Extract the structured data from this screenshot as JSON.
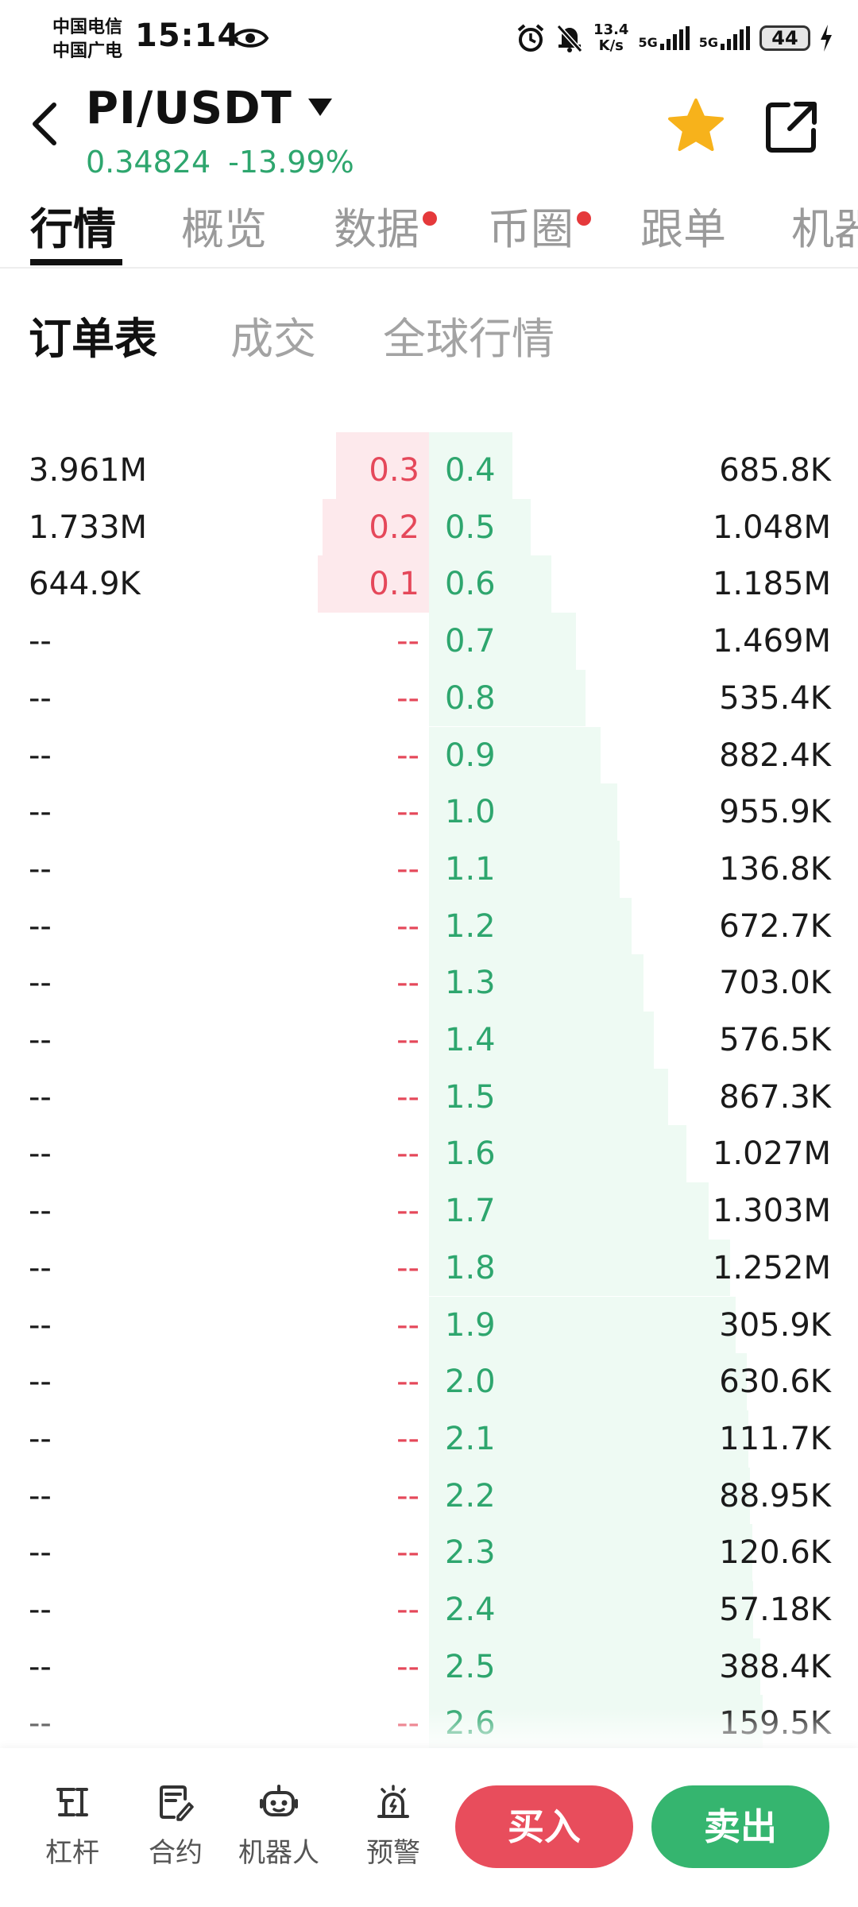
{
  "status_bar": {
    "carrier_1": "中国电信",
    "carrier_2": "中国广电",
    "time": "15:14",
    "speed_value": "13.4",
    "speed_unit": "K/s",
    "net_1": "5G",
    "net_2": "5G",
    "battery": "44"
  },
  "header": {
    "pair": "PI/USDT",
    "last_price": "0.34824",
    "change_pct": "-13.99%"
  },
  "main_tabs": [
    {
      "label": "行情",
      "active": true,
      "dot": false
    },
    {
      "label": "概览",
      "active": false,
      "dot": false
    },
    {
      "label": "数据",
      "active": false,
      "dot": true
    },
    {
      "label": "币圈",
      "active": false,
      "dot": true
    },
    {
      "label": "跟单",
      "active": false,
      "dot": false
    },
    {
      "label": "机器",
      "active": false,
      "dot": false
    }
  ],
  "sub_tabs": [
    {
      "label": "订单表",
      "active": true
    },
    {
      "label": "成交",
      "active": false
    },
    {
      "label": "全球行情",
      "active": false
    }
  ],
  "order_book": {
    "rows": [
      {
        "bid_vol": "3.961M",
        "bid_price": "0.3",
        "ask_price": "0.4",
        "ask_vol": "685.8K"
      },
      {
        "bid_vol": "1.733M",
        "bid_price": "0.2",
        "ask_price": "0.5",
        "ask_vol": "1.048M"
      },
      {
        "bid_vol": "644.9K",
        "bid_price": "0.1",
        "ask_price": "0.6",
        "ask_vol": "1.185M"
      },
      {
        "bid_vol": "--",
        "bid_price": "--",
        "ask_price": "0.7",
        "ask_vol": "1.469M"
      },
      {
        "bid_vol": "--",
        "bid_price": "--",
        "ask_price": "0.8",
        "ask_vol": "535.4K"
      },
      {
        "bid_vol": "--",
        "bid_price": "--",
        "ask_price": "0.9",
        "ask_vol": "882.4K"
      },
      {
        "bid_vol": "--",
        "bid_price": "--",
        "ask_price": "1.0",
        "ask_vol": "955.9K"
      },
      {
        "bid_vol": "--",
        "bid_price": "--",
        "ask_price": "1.1",
        "ask_vol": "136.8K"
      },
      {
        "bid_vol": "--",
        "bid_price": "--",
        "ask_price": "1.2",
        "ask_vol": "672.7K"
      },
      {
        "bid_vol": "--",
        "bid_price": "--",
        "ask_price": "1.3",
        "ask_vol": "703.0K"
      },
      {
        "bid_vol": "--",
        "bid_price": "--",
        "ask_price": "1.4",
        "ask_vol": "576.5K"
      },
      {
        "bid_vol": "--",
        "bid_price": "--",
        "ask_price": "1.5",
        "ask_vol": "867.3K"
      },
      {
        "bid_vol": "--",
        "bid_price": "--",
        "ask_price": "1.6",
        "ask_vol": "1.027M"
      },
      {
        "bid_vol": "--",
        "bid_price": "--",
        "ask_price": "1.7",
        "ask_vol": "1.303M"
      },
      {
        "bid_vol": "--",
        "bid_price": "--",
        "ask_price": "1.8",
        "ask_vol": "1.252M"
      },
      {
        "bid_vol": "--",
        "bid_price": "--",
        "ask_price": "1.9",
        "ask_vol": "305.9K"
      },
      {
        "bid_vol": "--",
        "bid_price": "--",
        "ask_price": "2.0",
        "ask_vol": "630.6K"
      },
      {
        "bid_vol": "--",
        "bid_price": "--",
        "ask_price": "2.1",
        "ask_vol": "111.7K"
      },
      {
        "bid_vol": "--",
        "bid_price": "--",
        "ask_price": "2.2",
        "ask_vol": "88.95K"
      },
      {
        "bid_vol": "--",
        "bid_price": "--",
        "ask_price": "2.3",
        "ask_vol": "120.6K"
      },
      {
        "bid_vol": "--",
        "bid_price": "--",
        "ask_price": "2.4",
        "ask_vol": "57.18K"
      },
      {
        "bid_vol": "--",
        "bid_price": "--",
        "ask_price": "2.5",
        "ask_vol": "388.4K"
      },
      {
        "bid_vol": "--",
        "bid_price": "--",
        "ask_price": "2.6",
        "ask_vol": "159.5K"
      }
    ]
  },
  "bottom_bar": {
    "items": [
      {
        "label": "杠杆",
        "icon": "leverage-icon"
      },
      {
        "label": "合约",
        "icon": "contract-icon"
      },
      {
        "label": "机器人",
        "icon": "robot-icon"
      },
      {
        "label": "预警",
        "icon": "alert-icon"
      }
    ],
    "buy_label": "买入",
    "sell_label": "卖出"
  },
  "colors": {
    "buy": "#e84d5c",
    "sell": "#35b56f",
    "bid_text": "#e5485a",
    "ask_text": "#2ea66e",
    "star": "#f7b21b"
  }
}
